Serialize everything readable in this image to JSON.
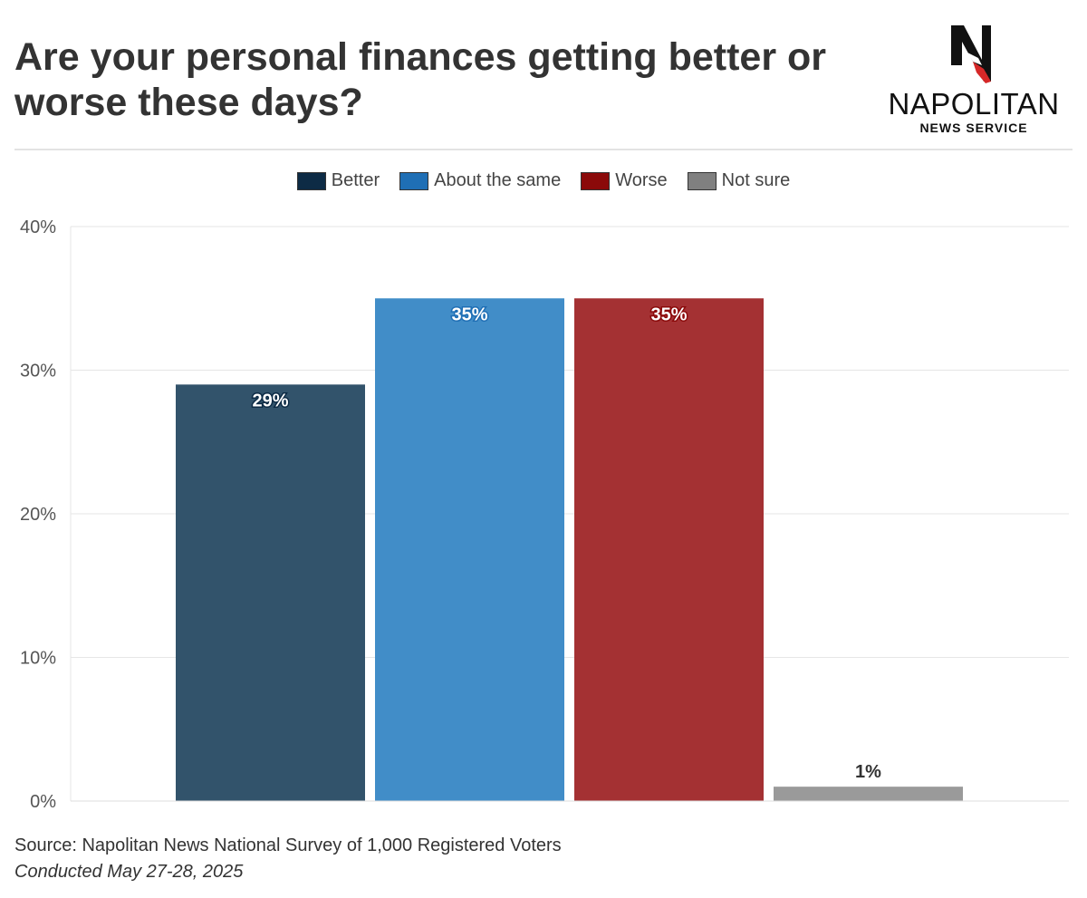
{
  "title": "Are your personal finances getting better or worse these days?",
  "logo": {
    "name": "NAPOLITAN",
    "sub": "NEWS SERVICE",
    "mark": "N"
  },
  "chart_data": {
    "type": "bar",
    "categories": [
      "Better",
      "About the same",
      "Worse",
      "Not sure"
    ],
    "values": [
      29,
      35,
      35,
      1
    ],
    "data_labels": [
      "29%",
      "35%",
      "35%",
      "1%"
    ],
    "colors": [
      "#32536b",
      "#418dc8",
      "#a43133",
      "#9a9a9a"
    ],
    "legend_colors": [
      "#0d2b45",
      "#1f6fb5",
      "#8b0a0a",
      "#808080"
    ],
    "ylim": [
      0,
      40
    ],
    "yticks": [
      0,
      10,
      20,
      30,
      40
    ],
    "ytick_labels": [
      "0%",
      "10%",
      "20%",
      "30%",
      "40%"
    ],
    "grid": true,
    "legend_position": "top-center"
  },
  "footer": {
    "source": "Source: Napolitan News National Survey of 1,000 Registered Voters",
    "date": "Conducted May 27-28, 2025"
  }
}
